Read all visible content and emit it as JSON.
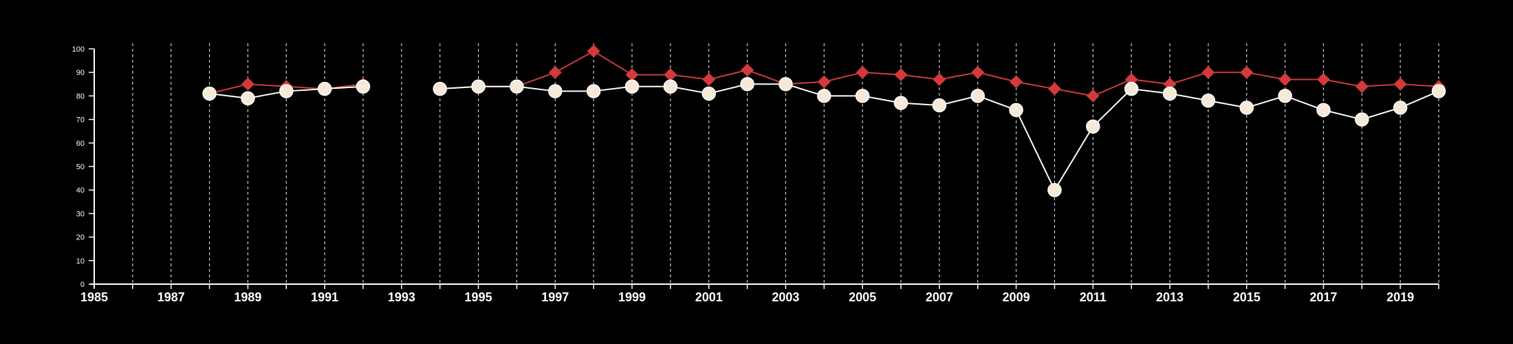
{
  "chart_data": {
    "type": "line",
    "title": "",
    "xlabel": "",
    "ylabel": "",
    "xlim": [
      1985,
      2020
    ],
    "ylim": [
      0,
      100
    ],
    "y_ticks": [
      0,
      10,
      20,
      30,
      40,
      50,
      60,
      70,
      80,
      90,
      100
    ],
    "x_tick_labels": [
      "1985",
      "1987",
      "1989",
      "1991",
      "1993",
      "1995",
      "1997",
      "1999",
      "2001",
      "2003",
      "2005",
      "2007",
      "2009",
      "2011",
      "2013",
      "2015",
      "2017",
      "2019"
    ],
    "grid": "vertical dashed lines at each year",
    "legend": "none",
    "x": [
      1988,
      1989,
      1990,
      1991,
      1992,
      1994,
      1995,
      1996,
      1997,
      1998,
      1999,
      2000,
      2001,
      2002,
      2003,
      2004,
      2005,
      2006,
      2007,
      2008,
      2009,
      2010,
      2011,
      2012,
      2013,
      2014,
      2015,
      2016,
      2017,
      2018,
      2019,
      2020
    ],
    "series": [
      {
        "color": "#d23a3c",
        "marker": "diamond",
        "values": [
          81,
          85,
          84,
          83,
          85,
          83,
          84,
          84,
          90,
          99,
          89,
          89,
          87,
          91,
          85,
          86,
          90,
          89,
          87,
          90,
          86,
          83,
          80,
          87,
          85,
          90,
          90,
          87,
          87,
          84,
          85,
          84
        ]
      },
      {
        "color": "#ffffff",
        "marker_fill": "#f7e9d7",
        "marker": "circle",
        "values": [
          81,
          79,
          82,
          83,
          84,
          83,
          84,
          84,
          82,
          82,
          84,
          84,
          81,
          85,
          85,
          80,
          80,
          77,
          76,
          80,
          74,
          40,
          67,
          83,
          81,
          78,
          75,
          80,
          74,
          70,
          75,
          82
        ]
      }
    ]
  }
}
